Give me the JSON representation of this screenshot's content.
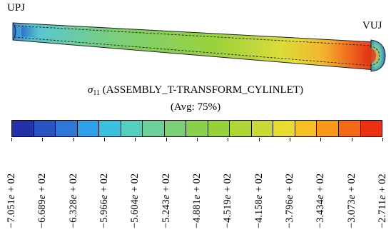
{
  "labels": {
    "left_end": "UPJ",
    "right_end": "VUJ"
  },
  "title": {
    "symbol": "σ",
    "subscript": "11",
    "text": " (ASSEMBLY_T-TRANSFORM_CYLINLET)"
  },
  "subtitle": "(Avg: 75%)",
  "legend": {
    "colors": [
      "#2233aa",
      "#2855c2",
      "#2f78d8",
      "#30a0e8",
      "#3cc0e0",
      "#56cfc0",
      "#6cd09a",
      "#7ccf74",
      "#88d04c",
      "#98d03a",
      "#b0d636",
      "#cada34",
      "#e8dc2e",
      "#f7c022",
      "#fa9818",
      "#f56a14",
      "#ec3014"
    ],
    "ticks": [
      {
        "mant": "−7.051",
        "exp": "e",
        "rest": " + 02"
      },
      {
        "mant": "−6.689",
        "exp": "e",
        "rest": " + 02"
      },
      {
        "mant": "−6.328",
        "exp": "e",
        "rest": " + 02"
      },
      {
        "mant": "−5.966",
        "exp": "e",
        "rest": " + 02"
      },
      {
        "mant": "−5.604",
        "exp": "e",
        "rest": " + 02"
      },
      {
        "mant": "−5.243",
        "exp": "e",
        "rest": " + 02"
      },
      {
        "mant": "−4.881",
        "exp": "e",
        "rest": " + 02"
      },
      {
        "mant": "−4.519",
        "exp": "e",
        "rest": " + 02"
      },
      {
        "mant": "−4.158",
        "exp": "e",
        "rest": " + 02"
      },
      {
        "mant": "−3.796",
        "exp": "e",
        "rest": " + 02"
      },
      {
        "mant": "−3.434",
        "exp": "e",
        "rest": " + 02"
      },
      {
        "mant": "−3.073",
        "exp": "e",
        "rest": " + 02"
      },
      {
        "mant": "−2.711",
        "exp": "e",
        "rest": " + 02"
      }
    ]
  }
}
